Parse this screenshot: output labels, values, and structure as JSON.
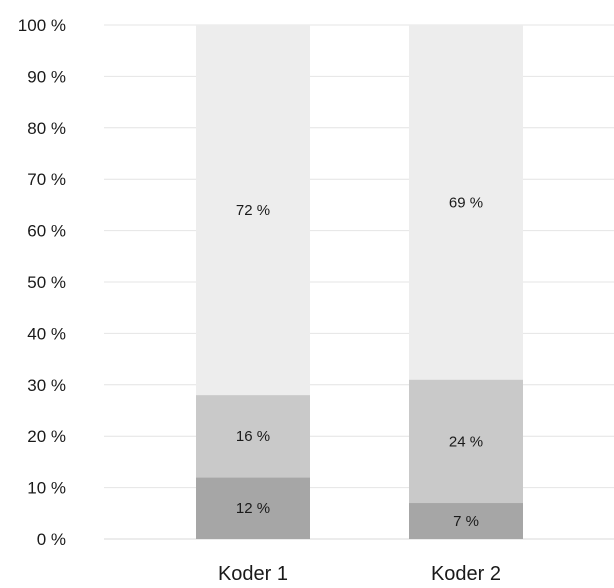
{
  "chart_data": {
    "type": "bar",
    "stacked": true,
    "categories": [
      "Koder 1",
      "Koder 2"
    ],
    "series": [
      {
        "values": [
          12,
          7
        ],
        "labels": [
          "12 %",
          "7 %"
        ],
        "color": "#a6a6a6"
      },
      {
        "values": [
          16,
          24
        ],
        "labels": [
          "16 %",
          "24 %"
        ],
        "color": "#c9c9c9"
      },
      {
        "values": [
          72,
          69
        ],
        "labels": [
          "72 %",
          "69 %"
        ],
        "color": "#ededed"
      }
    ],
    "ylim": [
      0,
      100
    ],
    "yticks": [
      0,
      10,
      20,
      30,
      40,
      50,
      60,
      70,
      80,
      90,
      100
    ],
    "ytick_labels": [
      "0 %",
      "10 %",
      "20 %",
      "30 %",
      "40 %",
      "50 %",
      "60 %",
      "70 %",
      "80 %",
      "90 %",
      "100 %"
    ],
    "title": "",
    "xlabel": "",
    "ylabel": "",
    "grid": true,
    "legend": "none"
  }
}
